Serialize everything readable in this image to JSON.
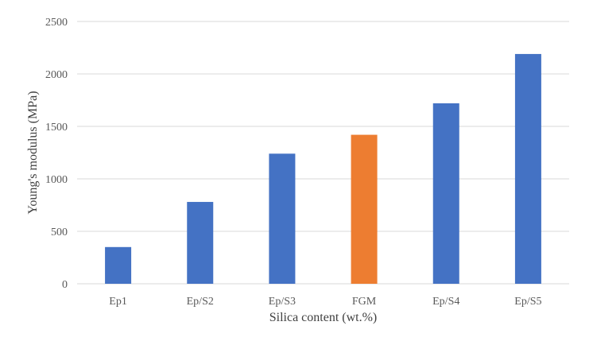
{
  "chart_data": {
    "type": "bar",
    "categories": [
      "Ep1",
      "Ep/S2",
      "Ep/S3",
      "FGM",
      "Ep/S4",
      "Ep/S5"
    ],
    "values": [
      350,
      780,
      1240,
      1420,
      1720,
      2190
    ],
    "bar_colors": [
      "#4472c4",
      "#4472c4",
      "#4472c4",
      "#ed7d31",
      "#4472c4",
      "#4472c4"
    ],
    "xlabel": "Silica content (wt.%)",
    "ylabel": "Young's modulus (MPa)",
    "ylim": [
      0,
      2500
    ],
    "yticks": [
      0,
      500,
      1000,
      1500,
      2000,
      2500
    ],
    "grid": true,
    "legend": "none"
  }
}
